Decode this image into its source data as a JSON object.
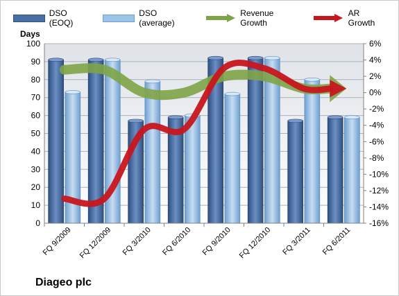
{
  "company": "Diageo plc",
  "chart_data": {
    "type": "bar",
    "ylabel": "Days",
    "ylim": [
      0,
      100
    ],
    "y_ticks": [
      "0",
      "10",
      "20",
      "30",
      "40",
      "50",
      "60",
      "70",
      "80",
      "90",
      "100"
    ],
    "y2lim": [
      -16,
      6
    ],
    "y2_ticks": [
      "-16%",
      "-14%",
      "-12%",
      "-10%",
      "-8%",
      "-6%",
      "-4%",
      "-2%",
      "0%",
      "2%",
      "4%",
      "6%"
    ],
    "categories": [
      "FQ 9/2009",
      "FQ 12/2009",
      "FQ 3/2010",
      "FQ 6/2010",
      "FQ 9/2010",
      "FQ 12/2010",
      "FQ 3/2011",
      "FQ 6/2011"
    ],
    "series": [
      {
        "name": "DSO (EOQ)",
        "type": "bar",
        "axis": "left",
        "color": "#4a6fa5",
        "values": [
          91,
          91,
          57,
          59,
          92,
          92,
          57,
          59
        ]
      },
      {
        "name": "DSO (average)",
        "type": "bar",
        "axis": "left",
        "color": "#9dc3e6",
        "values": [
          73,
          91,
          79,
          60,
          72,
          92,
          80,
          59
        ]
      },
      {
        "name": "Revenue Growth",
        "type": "line",
        "axis": "right",
        "color": "#7ea447",
        "values": [
          2.8,
          2.8,
          0,
          0,
          2,
          2,
          0.5,
          0.5
        ]
      },
      {
        "name": "AR Growth",
        "type": "line",
        "axis": "right",
        "color": "#c8161d",
        "values": [
          -13,
          -13,
          -4.5,
          -4.5,
          3,
          3,
          0.5,
          0.5
        ]
      }
    ],
    "grid": true,
    "legend": "top"
  }
}
